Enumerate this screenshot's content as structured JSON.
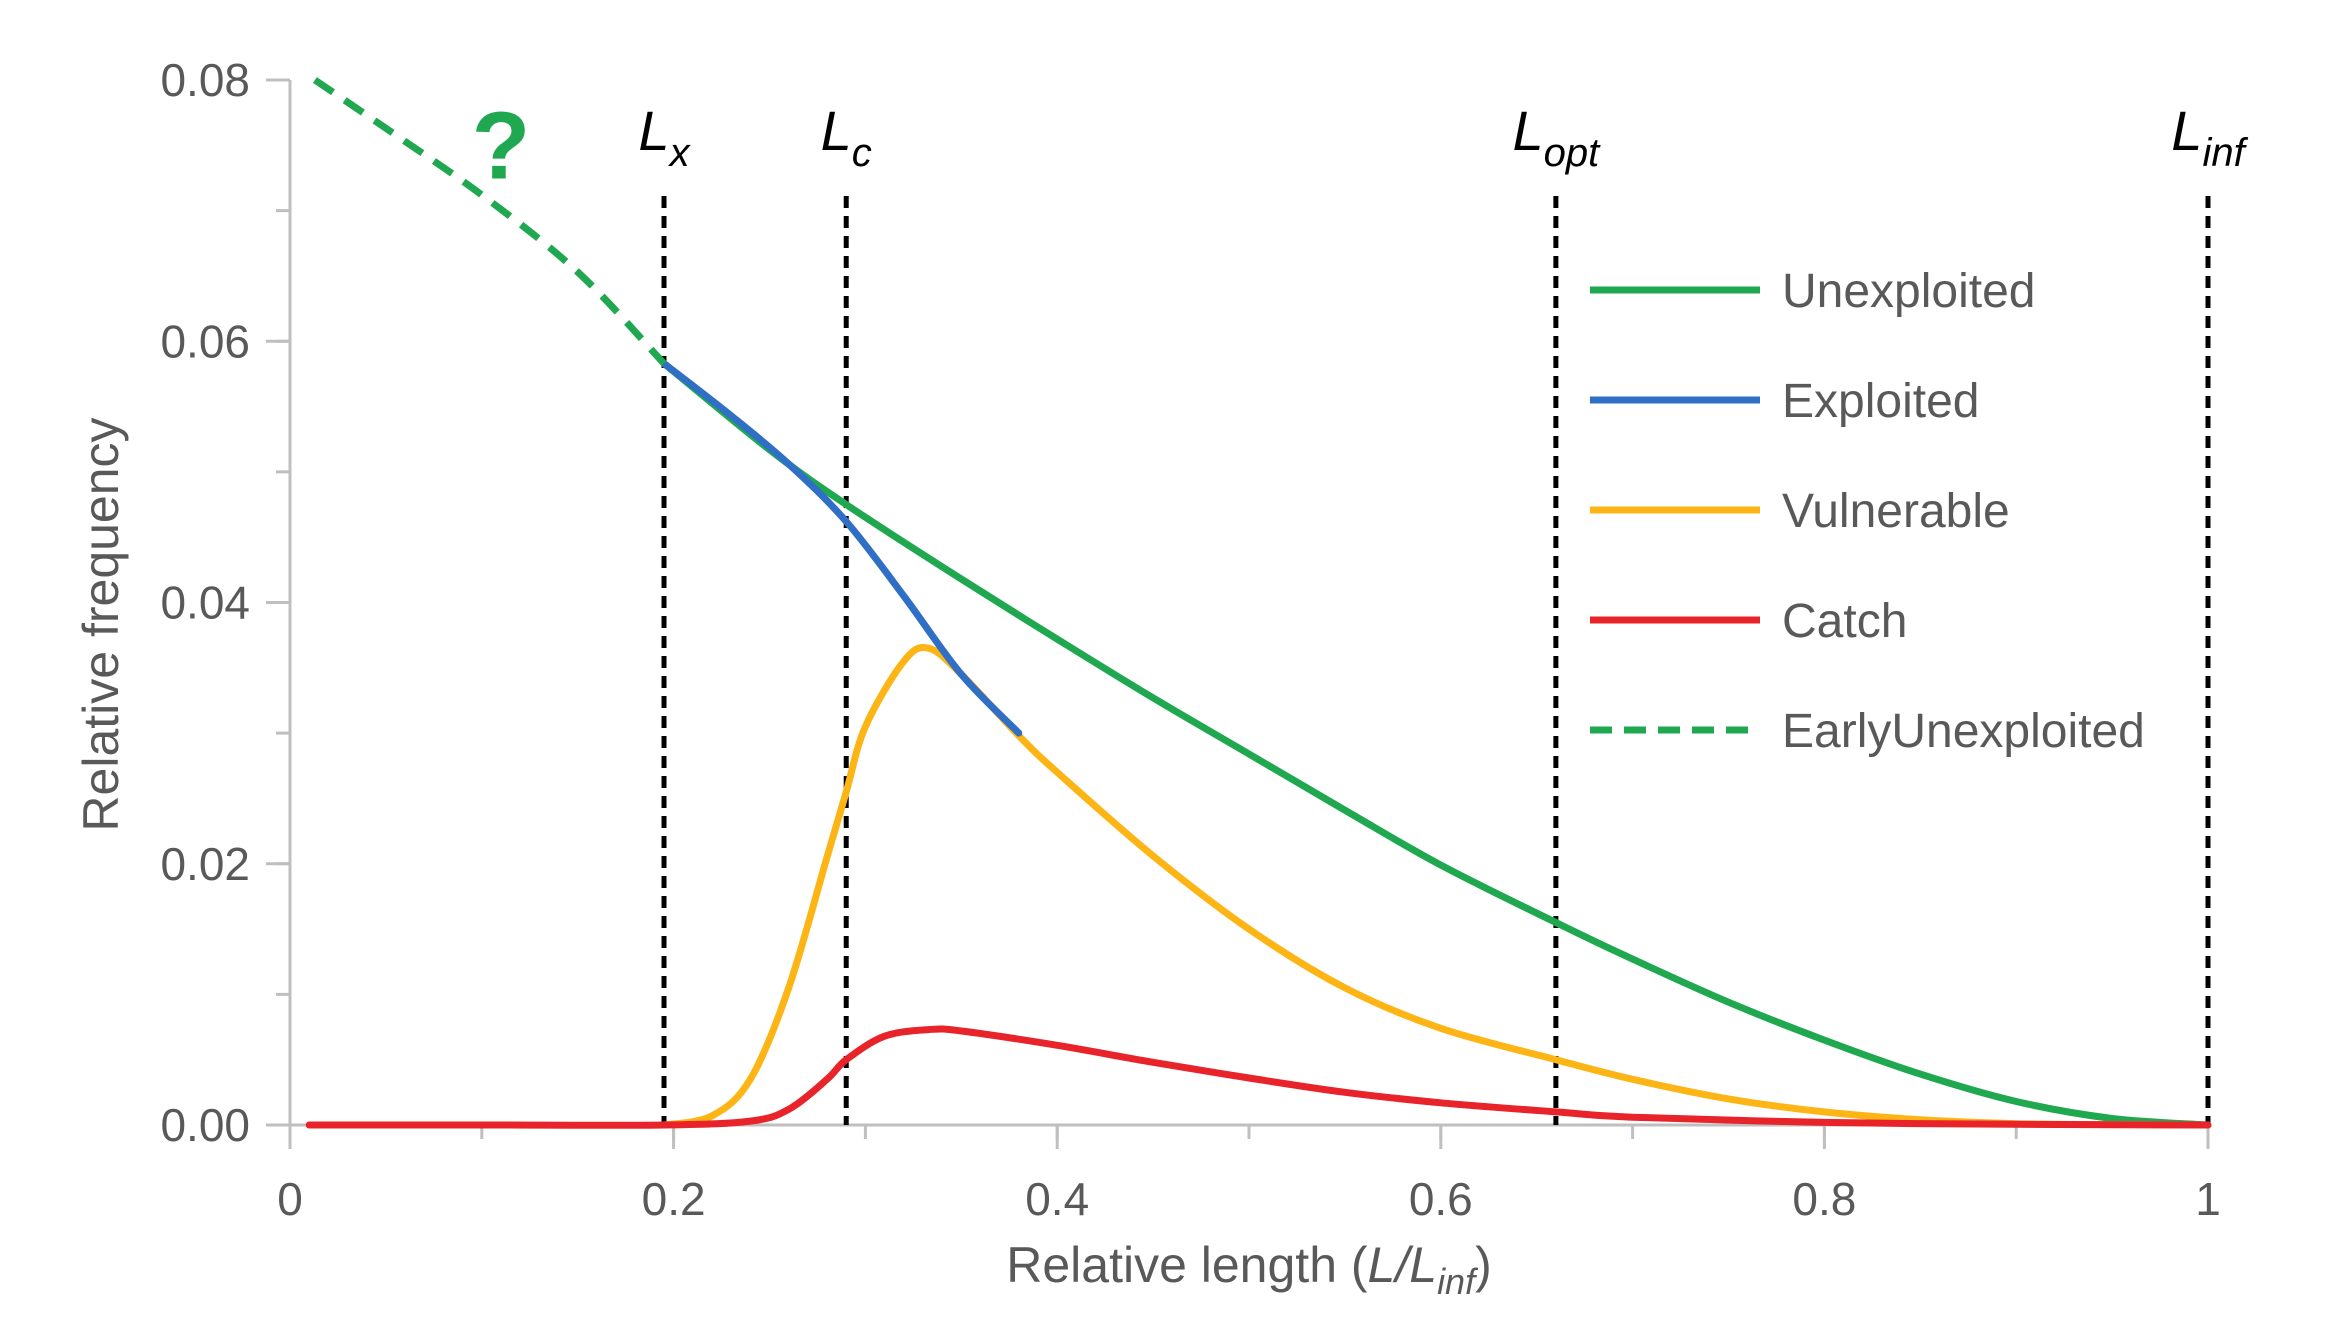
{
  "chart_data": {
    "type": "line",
    "xlabel": {
      "main": "Relative length (",
      "italic": "L/L",
      "sub": "inf",
      "close": ")"
    },
    "ylabel": "Relative frequency",
    "xlim": [
      0,
      1
    ],
    "ylim": [
      0,
      0.08
    ],
    "x_ticks": [
      {
        "value": 0,
        "label": "0"
      },
      {
        "value": 0.2,
        "label": "0.2"
      },
      {
        "value": 0.4,
        "label": "0.4"
      },
      {
        "value": 0.6,
        "label": "0.6"
      },
      {
        "value": 0.8,
        "label": "0.8"
      },
      {
        "value": 1,
        "label": "1"
      }
    ],
    "y_ticks": [
      {
        "value": 0,
        "label": "0.00"
      },
      {
        "value": 0.02,
        "label": "0.02"
      },
      {
        "value": 0.04,
        "label": "0.04"
      },
      {
        "value": 0.06,
        "label": "0.06"
      },
      {
        "value": 0.08,
        "label": "0.08"
      }
    ],
    "x_minor_step": 0.1,
    "y_minor_step": 0.01,
    "grid": false,
    "legend": {
      "placement": "right"
    },
    "reference_lines": [
      {
        "value": 0.195,
        "label": "L",
        "sub": "x"
      },
      {
        "value": 0.29,
        "label": "L",
        "sub": "c"
      },
      {
        "value": 0.66,
        "label": "L",
        "sub": "opt"
      },
      {
        "value": 1.0,
        "label": "L",
        "sub": "inf"
      }
    ],
    "annotation": {
      "text": "?",
      "x": 0.11,
      "y": 0.074
    },
    "series": [
      {
        "name": "Unexploited",
        "color": "#1fa84f",
        "style": "solid",
        "x": [
          0.195,
          0.25,
          0.29,
          0.35,
          0.4,
          0.45,
          0.5,
          0.55,
          0.6,
          0.66,
          0.7,
          0.75,
          0.8,
          0.85,
          0.9,
          0.95,
          1.0
        ],
        "y": [
          0.0583,
          0.0517,
          0.0475,
          0.0418,
          0.0372,
          0.0327,
          0.0284,
          0.0241,
          0.0199,
          0.0155,
          0.0127,
          0.0094,
          0.0065,
          0.0039,
          0.0018,
          0.0005,
          0.0
        ]
      },
      {
        "name": "Exploited",
        "color": "#2f6fc6",
        "style": "solid",
        "x": [
          0.195,
          0.23,
          0.26,
          0.29,
          0.32,
          0.35,
          0.38
        ],
        "y": [
          0.0583,
          0.0543,
          0.0506,
          0.0462,
          0.0405,
          0.0345,
          0.03
        ]
      },
      {
        "name": "Vulnerable",
        "color": "#fdb515",
        "style": "solid",
        "x": [
          0.195,
          0.22,
          0.24,
          0.26,
          0.28,
          0.29,
          0.3,
          0.32,
          0.333,
          0.35,
          0.38,
          0.4,
          0.45,
          0.5,
          0.55,
          0.6,
          0.66,
          0.7,
          0.75,
          0.8,
          0.85,
          0.9,
          0.95,
          1.0
        ],
        "y": [
          0.0,
          0.0007,
          0.0035,
          0.0105,
          0.0205,
          0.0255,
          0.0305,
          0.0355,
          0.0365,
          0.0345,
          0.0298,
          0.027,
          0.0206,
          0.015,
          0.0105,
          0.0074,
          0.005,
          0.0035,
          0.002,
          0.001,
          0.0004,
          0.0001,
          3e-05,
          0.0
        ]
      },
      {
        "name": "Catch",
        "color": "#e8232a",
        "style": "solid",
        "x": [
          0.01,
          0.1,
          0.195,
          0.24,
          0.26,
          0.28,
          0.29,
          0.31,
          0.333,
          0.35,
          0.4,
          0.45,
          0.5,
          0.55,
          0.6,
          0.66,
          0.7,
          0.8,
          0.9,
          1.0
        ],
        "y": [
          0.0,
          0.0,
          0.0,
          0.0003,
          0.0012,
          0.0035,
          0.005,
          0.0068,
          0.0073,
          0.0072,
          0.0061,
          0.0048,
          0.0036,
          0.0025,
          0.0017,
          0.001,
          0.0006,
          0.0002,
          5e-05,
          0.0
        ]
      },
      {
        "name": "EarlyUnexploited",
        "color": "#1fa84f",
        "style": "dashed",
        "x": [
          0.013,
          0.05,
          0.1,
          0.15,
          0.195
        ],
        "y": [
          0.08,
          0.0763,
          0.0712,
          0.0653,
          0.0583
        ]
      }
    ]
  }
}
